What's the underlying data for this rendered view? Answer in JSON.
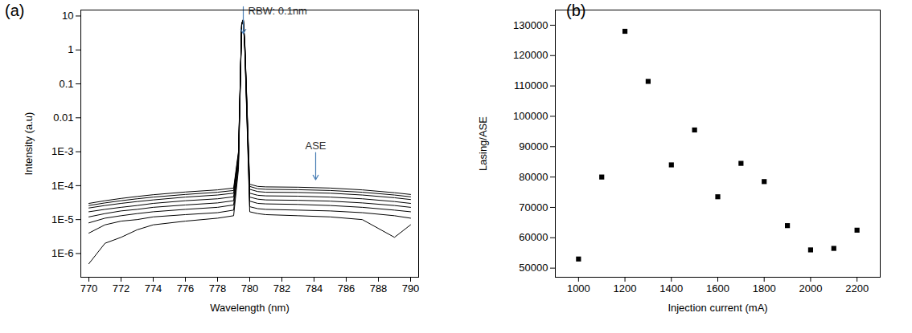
{
  "chart_data": [
    {
      "type": "line",
      "panel_label": "(a)",
      "x_label": "Wavelength (nm)",
      "y_label": "Intensity (a.u)",
      "log": "y",
      "grid": false,
      "xlim": [
        769.5,
        790.5
      ],
      "xticks": [
        770,
        772,
        774,
        776,
        778,
        780,
        782,
        784,
        786,
        788,
        790
      ],
      "ylim": [
        2e-07,
        15
      ],
      "yticks": [
        {
          "value": 1e-06,
          "label": "1E-6"
        },
        {
          "value": 1e-05,
          "label": "1E-5"
        },
        {
          "value": 0.0001,
          "label": "1E-4"
        },
        {
          "value": 0.001,
          "label": "1E-3"
        },
        0.01,
        0.1,
        1,
        10
      ],
      "annotations": [
        {
          "text": "RBW: 0.1nm",
          "x": 779.6,
          "y": 3
        },
        {
          "text": "ASE",
          "x": 784.1,
          "y": 0.00015
        }
      ],
      "x": [
        770,
        771,
        772,
        773,
        774,
        776,
        778,
        779,
        779.3,
        779.5,
        779.6,
        779.7,
        780,
        780.5,
        781,
        783,
        785,
        787,
        789,
        790
      ],
      "series": [
        {
          "color": "#000000",
          "values": [
            3e-05,
            3.6e-05,
            4.2e-05,
            4.8e-05,
            5.4e-05,
            6.5e-05,
            7.5e-05,
            8.5e-05,
            0.001,
            6,
            8,
            1.5,
            0.00011,
            9.5e-05,
            9.2e-05,
            9e-05,
            8.5e-05,
            7.5e-05,
            6.2e-05,
            5.5e-05
          ]
        },
        {
          "color": "#000000",
          "values": [
            2.6e-05,
            3.1e-05,
            3.6e-05,
            4.1e-05,
            4.6e-05,
            5.5e-05,
            6.4e-05,
            7.2e-05,
            0.0009,
            6,
            7.9,
            1.4,
            9.5e-05,
            8.1e-05,
            7.8e-05,
            7.6e-05,
            7.2e-05,
            6.4e-05,
            5.3e-05,
            4.7e-05
          ]
        },
        {
          "color": "#000000",
          "values": [
            2.2e-05,
            2.6e-05,
            3e-05,
            3.4e-05,
            3.8e-05,
            4.6e-05,
            5.3e-05,
            6e-05,
            0.0008,
            5.9,
            7.8,
            1.3,
            7.8e-05,
            6.7e-05,
            6.4e-05,
            6.3e-05,
            6e-05,
            5.3e-05,
            4.4e-05,
            3.9e-05
          ]
        },
        {
          "color": "#000000",
          "values": [
            1.7e-05,
            2e-05,
            2.3e-05,
            2.6e-05,
            3e-05,
            3.6e-05,
            4.1e-05,
            4.7e-05,
            0.0007,
            5.8,
            7.7,
            1.2,
            6e-05,
            5.2e-05,
            5e-05,
            4.9e-05,
            4.6e-05,
            4.1e-05,
            3.4e-05,
            3e-05
          ]
        },
        {
          "color": "#000000",
          "values": [
            1.2e-05,
            1.5e-05,
            1.8e-05,
            2e-05,
            2.3e-05,
            2.7e-05,
            3.1e-05,
            3.6e-05,
            0.0006,
            5.7,
            7.6,
            1.1,
            4.6e-05,
            4e-05,
            3.8e-05,
            3.7e-05,
            3.5e-05,
            3.1e-05,
            2.6e-05,
            2.3e-05
          ]
        },
        {
          "color": "#000000",
          "values": [
            8e-06,
            1.1e-05,
            1.3e-05,
            1.5e-05,
            1.7e-05,
            2e-05,
            2.3e-05,
            2.7e-05,
            0.0005,
            5.6,
            7.5,
            1.0,
            3.5e-05,
            3e-05,
            2.9e-05,
            2.8e-05,
            2.6e-05,
            2.3e-05,
            1.9e-05,
            1.7e-05
          ]
        },
        {
          "color": "#000000",
          "values": [
            4e-06,
            7e-06,
            9e-06,
            1e-05,
            1.2e-05,
            1.4e-05,
            1.6e-05,
            1.9e-05,
            0.0004,
            5.5,
            7.4,
            0.9,
            2.4e-05,
            2.1e-05,
            2e-05,
            1.9e-05,
            1.8e-05,
            1.6e-05,
            1.3e-05,
            1.1e-05
          ]
        },
        {
          "color": "#000000",
          "values": [
            5e-07,
            2e-06,
            3e-06,
            5e-06,
            7e-06,
            9e-06,
            1.1e-05,
            1.3e-05,
            0.0003,
            5.4,
            7.3,
            0.8,
            1.7e-05,
            1.5e-05,
            1.4e-05,
            1.3e-05,
            1.2e-05,
            1e-05,
            3e-06,
            7e-06
          ]
        }
      ]
    },
    {
      "type": "scatter",
      "panel_label": "(b)",
      "x_label": "Injection current (mA)",
      "y_label": "Lasing/ASE",
      "grid": false,
      "marker": "square",
      "color": "#000000",
      "xlim": [
        900,
        2300
      ],
      "xticks": [
        1000,
        1200,
        1400,
        1600,
        1800,
        2000,
        2200
      ],
      "ylim": [
        47000,
        135000
      ],
      "yticks": [
        50000,
        60000,
        70000,
        80000,
        90000,
        100000,
        110000,
        120000,
        130000
      ],
      "x": [
        1000,
        1100,
        1200,
        1300,
        1400,
        1500,
        1600,
        1700,
        1800,
        1900,
        2000,
        2100,
        2200
      ],
      "values": [
        53000,
        80000,
        128000,
        111500,
        84000,
        95500,
        73500,
        84500,
        78500,
        64000,
        56000,
        56500,
        62500
      ]
    }
  ]
}
